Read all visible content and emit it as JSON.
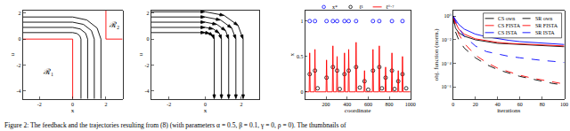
{
  "caption": "Figure 2: The feedback and the trajectories resulting from (8) (with parameters α = 0.5, β = 0.1, γ = 0, ρ = 0). The thumbnails of",
  "chart_data": [
    {
      "type": "line",
      "xlabel": "x",
      "ylabel": "u",
      "xlim": [
        -3,
        3
      ],
      "ylim": [
        -4.6,
        2.2
      ],
      "xticks": [
        -2,
        0,
        2
      ],
      "yticks": [
        2,
        0,
        -2,
        -4
      ],
      "series": [
        {
          "color": "#000000",
          "x": [
            -3,
            0,
            0.25,
            0.43,
            0.5,
            0.5
          ],
          "values": [
            0.5,
            0.5,
            0.43,
            0.25,
            0,
            -4.6
          ]
        },
        {
          "color": "#000000",
          "x": [
            -3,
            0,
            0.45,
            0.78,
            0.9,
            0.9
          ],
          "values": [
            0.9,
            0.9,
            0.78,
            0.45,
            0,
            -4.6
          ]
        },
        {
          "color": "#000000",
          "x": [
            -3,
            0,
            0.65,
            1.13,
            1.3,
            1.3
          ],
          "values": [
            1.3,
            1.3,
            1.13,
            0.65,
            0,
            -4.6
          ]
        },
        {
          "color": "#000000",
          "x": [
            -3,
            0,
            0.85,
            1.47,
            1.7,
            1.7
          ],
          "values": [
            1.7,
            1.7,
            1.47,
            0.85,
            0,
            -4.6
          ]
        },
        {
          "color": "#ff0000",
          "x": [
            -3,
            0,
            0
          ],
          "values": [
            0,
            0,
            -4.6
          ]
        },
        {
          "color": "#ff0000",
          "x": [
            2,
            2,
            3
          ],
          "values": [
            2.2,
            0,
            0
          ]
        }
      ],
      "annotations": [
        {
          "text": "ℛ₁",
          "x": -1.5,
          "y": -2.5
        },
        {
          "text": "ℛ₂",
          "x": 2.5,
          "y": 1.1
        }
      ]
    },
    {
      "type": "line",
      "xlabel": "x",
      "ylabel": "u",
      "xlim": [
        -3,
        3
      ],
      "ylim": [
        -4.6,
        2.2
      ],
      "xticks": [
        -2,
        0,
        2
      ],
      "yticks": [
        2,
        0,
        -2,
        -4
      ],
      "series": [
        {
          "color": "#000000",
          "marker": "arrow",
          "x": [
            -3,
            0,
            0.25,
            0.43,
            0.5,
            0.5
          ],
          "values": [
            0.5,
            0.5,
            0.43,
            0.25,
            0,
            -4.6
          ]
        },
        {
          "color": "#000000",
          "marker": "arrow",
          "x": [
            -3,
            0,
            0.45,
            0.78,
            0.9,
            0.9
          ],
          "values": [
            0.9,
            0.9,
            0.78,
            0.45,
            0,
            -4.6
          ]
        },
        {
          "color": "#000000",
          "marker": "arrow",
          "x": [
            -3,
            0,
            0.65,
            1.13,
            1.3,
            1.3
          ],
          "values": [
            1.3,
            1.3,
            1.13,
            0.65,
            0,
            -4.6
          ]
        },
        {
          "color": "#000000",
          "marker": "arrow",
          "x": [
            -3,
            0,
            0.85,
            1.47,
            1.7,
            1.7
          ],
          "values": [
            1.7,
            1.7,
            1.47,
            0.85,
            0,
            -4.6
          ]
        },
        {
          "color": "#000000",
          "marker": "arrow",
          "x": [
            -3,
            0,
            1.05,
            1.82,
            2.1,
            2.1
          ],
          "values": [
            2.1,
            2.1,
            1.82,
            1.05,
            0,
            -4.6
          ]
        }
      ]
    },
    {
      "type": "scatter",
      "xlabel": "coordinate",
      "ylabel": "x",
      "xlim": [
        0,
        1000
      ],
      "ylim": [
        -0.1,
        1.15
      ],
      "xticks": [
        200,
        400,
        600,
        800,
        1000
      ],
      "yticks": [
        0,
        0.5,
        1
      ],
      "legend": "top",
      "series": [
        {
          "name": "x*",
          "color": "#0000ff",
          "marker": "circle-open",
          "line_style": "none",
          "x": [
            45,
            95,
            205,
            265,
            305,
            375,
            415,
            485,
            645,
            705,
            825,
            925
          ],
          "values": [
            1,
            1,
            1,
            1,
            1,
            1,
            1,
            1,
            1,
            1,
            1,
            1
          ]
        },
        {
          "name": "ℓ¹",
          "color": "#000000",
          "marker": "circle-open",
          "line_style": "none",
          "x": [
            45,
            95,
            120,
            205,
            265,
            305,
            330,
            375,
            415,
            485,
            520,
            565,
            600,
            645,
            705,
            730,
            765,
            825,
            850,
            885,
            925,
            960
          ],
          "values": [
            0.25,
            0.3,
            0.05,
            0.2,
            0.35,
            0.3,
            0.04,
            0.25,
            0.3,
            0.35,
            0.06,
            0.15,
            0.03,
            0.3,
            0.35,
            0.05,
            0.2,
            0.3,
            0.04,
            0.15,
            0.25,
            0.05
          ]
        },
        {
          "name": "ℓ⁰·⁷",
          "color": "#ff0000",
          "line_style": "solid",
          "x": [
            0,
            40,
            45,
            50,
            90,
            95,
            100,
            200,
            205,
            210,
            260,
            265,
            270,
            300,
            305,
            310,
            370,
            375,
            380,
            410,
            415,
            420,
            480,
            485,
            490,
            560,
            565,
            570,
            640,
            645,
            650,
            700,
            705,
            710,
            760,
            765,
            770,
            820,
            825,
            830,
            880,
            885,
            890,
            920,
            925,
            930,
            1000
          ],
          "values": [
            0,
            0,
            0.55,
            0,
            0,
            0.6,
            0,
            0,
            0.45,
            0,
            0,
            0.65,
            0,
            0,
            0.5,
            0,
            0,
            0.55,
            0,
            0,
            0.6,
            0,
            0,
            0.7,
            0,
            0,
            0.3,
            0,
            0,
            0.6,
            0,
            0,
            0.65,
            0,
            0,
            0.35,
            0,
            0,
            0.55,
            0,
            0,
            0.3,
            0,
            0,
            0.5,
            0,
            0
          ]
        }
      ]
    },
    {
      "type": "line",
      "xlabel": "iterations",
      "ylabel": "obj. function (norm.)",
      "log": "y",
      "xlim": [
        0,
        100
      ],
      "ylim": [
        1e-07,
        3
      ],
      "xticks": [
        0,
        20,
        40,
        60,
        80,
        100
      ],
      "yticks": [
        {
          "value": 1,
          "label": "10⁰"
        },
        {
          "value": 0.01,
          "label": "10⁻²"
        },
        {
          "value": 0.0001,
          "label": "10⁻⁴"
        },
        {
          "value": 1e-06,
          "label": "10⁻⁶"
        }
      ],
      "legend": "upper right",
      "x": [
        0,
        2,
        5,
        10,
        20,
        30,
        40,
        50,
        60,
        70,
        80,
        90,
        100
      ],
      "series": [
        {
          "name": "CS own",
          "color": "#000000",
          "line_style": "solid",
          "values": [
            1,
            0.1,
            0.04,
            0.02,
            0.01,
            0.007,
            0.005,
            0.0045,
            0.004,
            0.0035,
            0.003,
            0.0028,
            0.0026
          ]
        },
        {
          "name": "SR own",
          "color": "#000000",
          "line_style": "dashed",
          "values": [
            1,
            0.05,
            0.01,
            0.002,
            0.0003,
            8e-05,
            3e-05,
            1.5e-05,
            8e-06,
            5e-06,
            3e-06,
            2e-06,
            1.5e-06
          ]
        },
        {
          "name": "CS FISTA",
          "color": "#ff0000",
          "line_style": "solid",
          "values": [
            1,
            0.3,
            0.08,
            0.03,
            0.012,
            0.008,
            0.006,
            0.005,
            0.0045,
            0.004,
            0.0035,
            0.0032,
            0.003
          ]
        },
        {
          "name": "SR FISTA",
          "color": "#ff0000",
          "line_style": "dashed",
          "values": [
            1,
            0.2,
            0.03,
            0.005,
            0.0005,
            0.00012,
            4e-05,
            2e-05,
            1e-05,
            6e-06,
            4e-06,
            2.5e-06,
            1.8e-06
          ]
        },
        {
          "name": "CS ISTA",
          "color": "#0000ff",
          "line_style": "solid",
          "values": [
            1,
            0.5,
            0.2,
            0.08,
            0.03,
            0.018,
            0.012,
            0.009,
            0.007,
            0.006,
            0.005,
            0.0045,
            0.004
          ]
        },
        {
          "name": "SR ISTA",
          "color": "#0000ff",
          "line_style": "dashed",
          "values": [
            1,
            0.4,
            0.1,
            0.02,
            0.003,
            0.001,
            0.0006,
            0.0004,
            0.0003,
            0.00022,
            0.00018,
            0.00015,
            0.00012
          ]
        }
      ]
    }
  ]
}
